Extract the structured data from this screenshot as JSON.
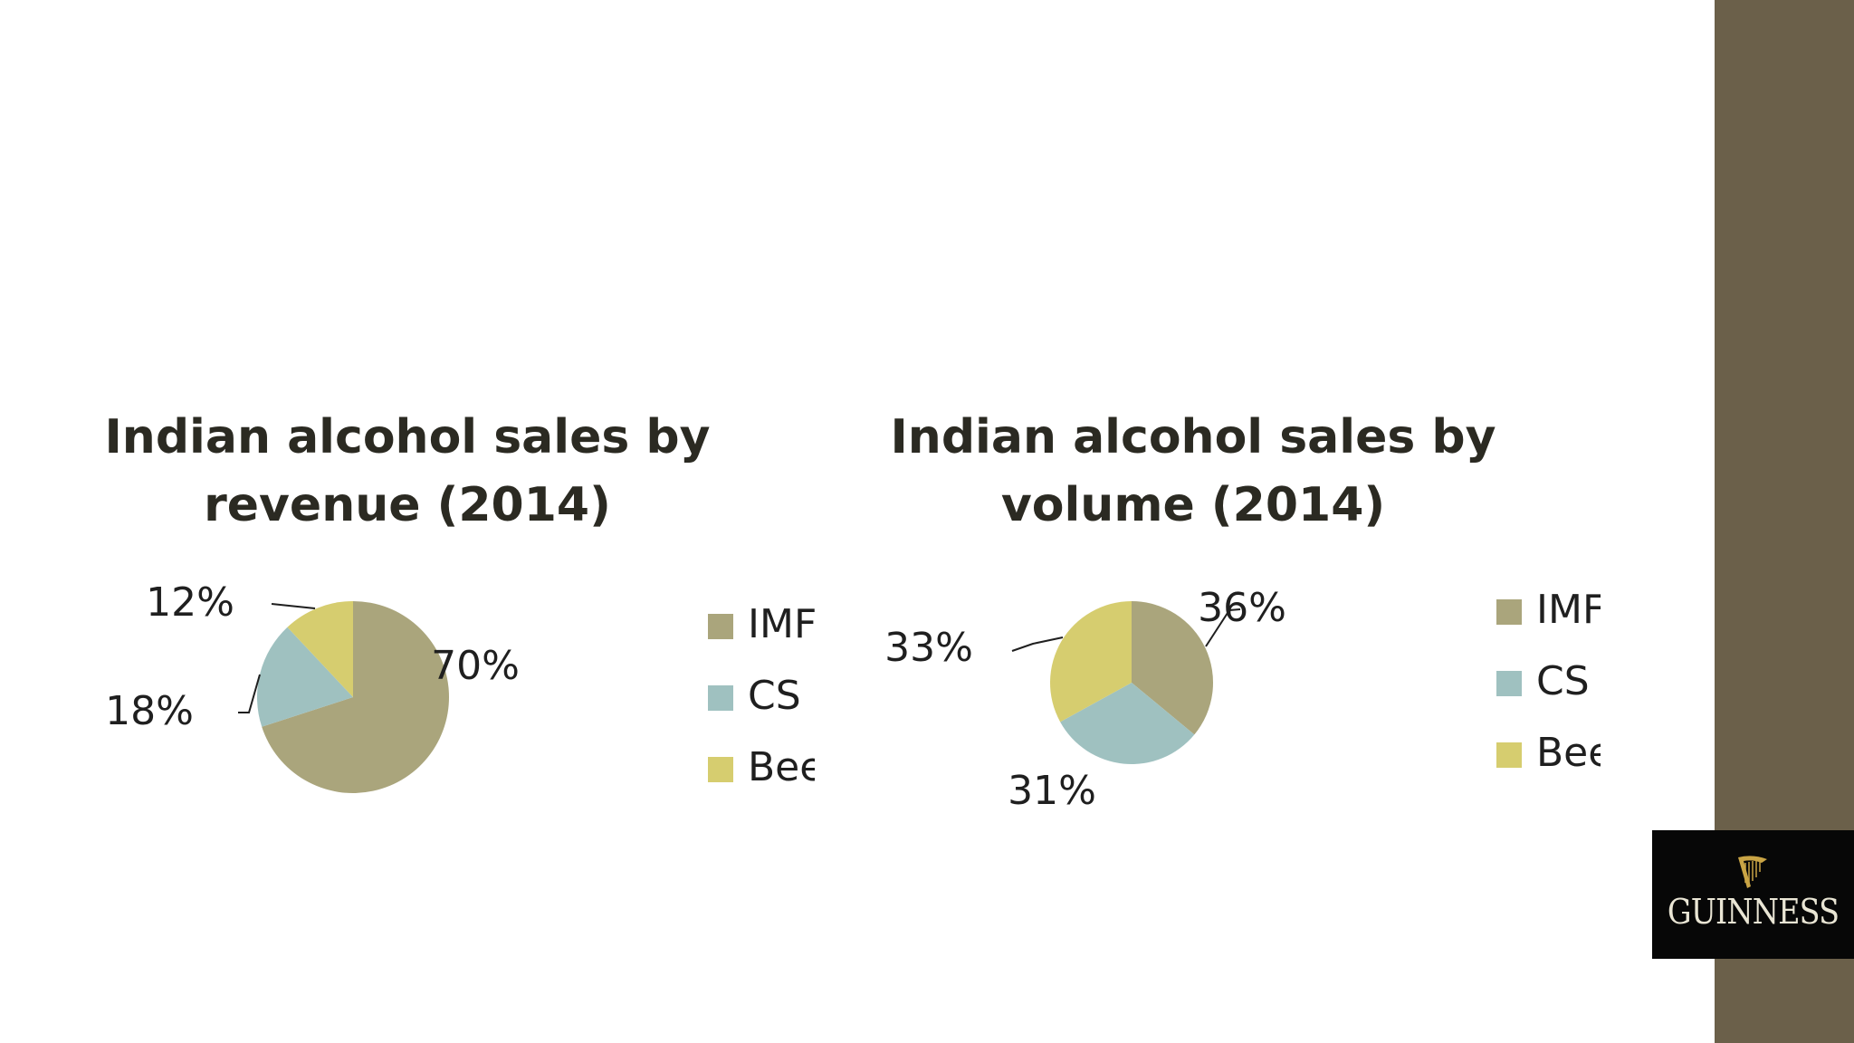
{
  "colors": {
    "IMFL": "#aaa57c",
    "CS": "#9fc1c0",
    "Beer": "#d6cd6f",
    "sidebar": "#6b604a"
  },
  "chart_data": [
    {
      "type": "pie",
      "title": "Indian alcohol sales by revenue (2014)",
      "title_lines": [
        "Indian alcohol sales by",
        "revenue (2014)"
      ],
      "categories": [
        "IMFL",
        "CS",
        "Beer"
      ],
      "values": [
        70,
        18,
        12
      ],
      "value_labels": [
        "70%",
        "18%",
        "12%"
      ],
      "legend": {
        "placement": "right",
        "entries": [
          "IMFL",
          "CS",
          "Beer"
        ]
      }
    },
    {
      "type": "pie",
      "title": "Indian alcohol sales by volume (2014)",
      "title_lines": [
        "Indian alcohol sales by",
        "volume (2014)"
      ],
      "categories": [
        "IMFL",
        "CS",
        "Beer"
      ],
      "values": [
        36,
        31,
        33
      ],
      "value_labels": [
        "36%",
        "31%",
        "33%"
      ],
      "legend": {
        "placement": "right",
        "entries": [
          "IMFL",
          "CS",
          "Beer"
        ]
      }
    }
  ],
  "logo": {
    "text": "GUINNESS",
    "icon": "harp-icon"
  }
}
